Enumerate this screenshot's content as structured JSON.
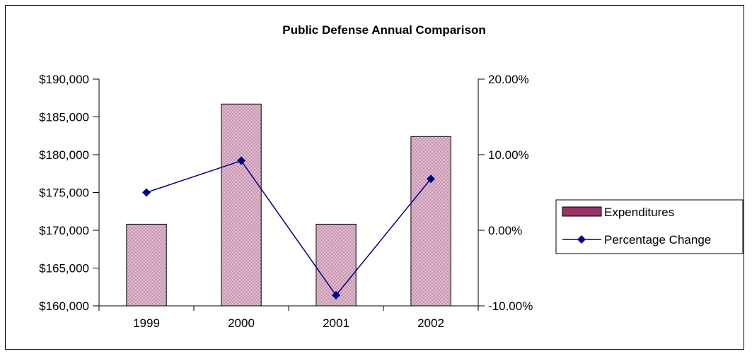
{
  "chart_data": {
    "type": "bar",
    "title": "Public Defense Annual Comparison",
    "categories": [
      "1999",
      "2000",
      "2001",
      "2002"
    ],
    "series": [
      {
        "name": "Expenditures",
        "type": "bar",
        "axis": "left",
        "values": [
          170800,
          186700,
          170800,
          182400
        ],
        "color": "#d8b0c4"
      },
      {
        "name": "Percentage Change",
        "type": "line",
        "axis": "right",
        "values": [
          5.0,
          9.2,
          -8.6,
          6.8
        ],
        "color": "#000080"
      }
    ],
    "y_left": {
      "min": 160000,
      "max": 190000,
      "tick_labels": [
        "$160,000",
        "$165,000",
        "$170,000",
        "$175,000",
        "$180,000",
        "$185,000",
        "$190,000"
      ]
    },
    "y_right": {
      "min": -10,
      "max": 20,
      "tick_labels": [
        "-10.00%",
        "0.00%",
        "10.00%",
        "20.00%"
      ]
    },
    "legend": {
      "placement": "right",
      "bar_swatch_color": "#993366"
    },
    "grid": false
  }
}
